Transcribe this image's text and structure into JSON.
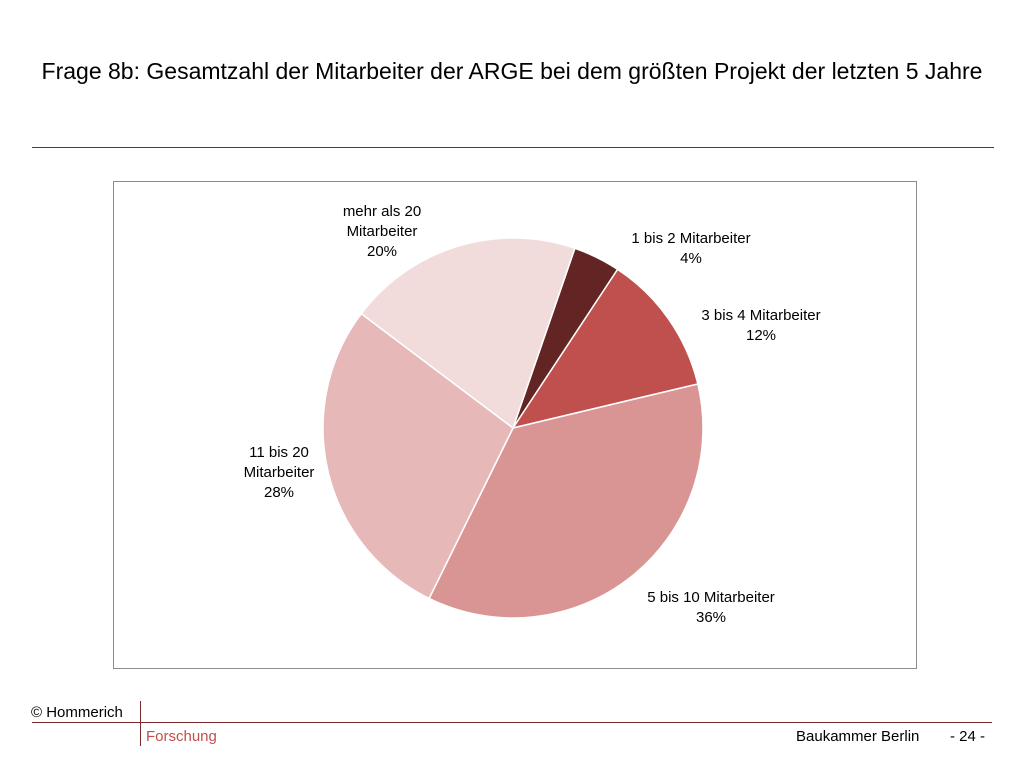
{
  "title": "Frage 8b: Gesamtzahl der Mitarbeiter der ARGE bei dem größten Projekt der letzten 5 Jahre",
  "footer": {
    "copyright": "© Hommerich",
    "department": "Forschung",
    "organization": "Baukammer Berlin",
    "page": "- 24 -"
  },
  "chart_data": {
    "type": "pie",
    "slices": [
      {
        "label_lines": [
          "1 bis 2 Mitarbeiter"
        ],
        "value": 4,
        "value_label": "4%",
        "color": "#632523"
      },
      {
        "label_lines": [
          "3 bis 4 Mitarbeiter"
        ],
        "value": 12,
        "value_label": "12%",
        "color": "#c0504d"
      },
      {
        "label_lines": [
          "5 bis 10 Mitarbeiter"
        ],
        "value": 36,
        "value_label": "36%",
        "color": "#d99594"
      },
      {
        "label_lines": [
          "11 bis 20",
          "Mitarbeiter"
        ],
        "value": 28,
        "value_label": "28%",
        "color": "#e6b9b8"
      },
      {
        "label_lines": [
          "mehr als 20",
          "Mitarbeiter"
        ],
        "value": 20,
        "value_label": "20%",
        "color": "#f2dcdb"
      }
    ]
  }
}
